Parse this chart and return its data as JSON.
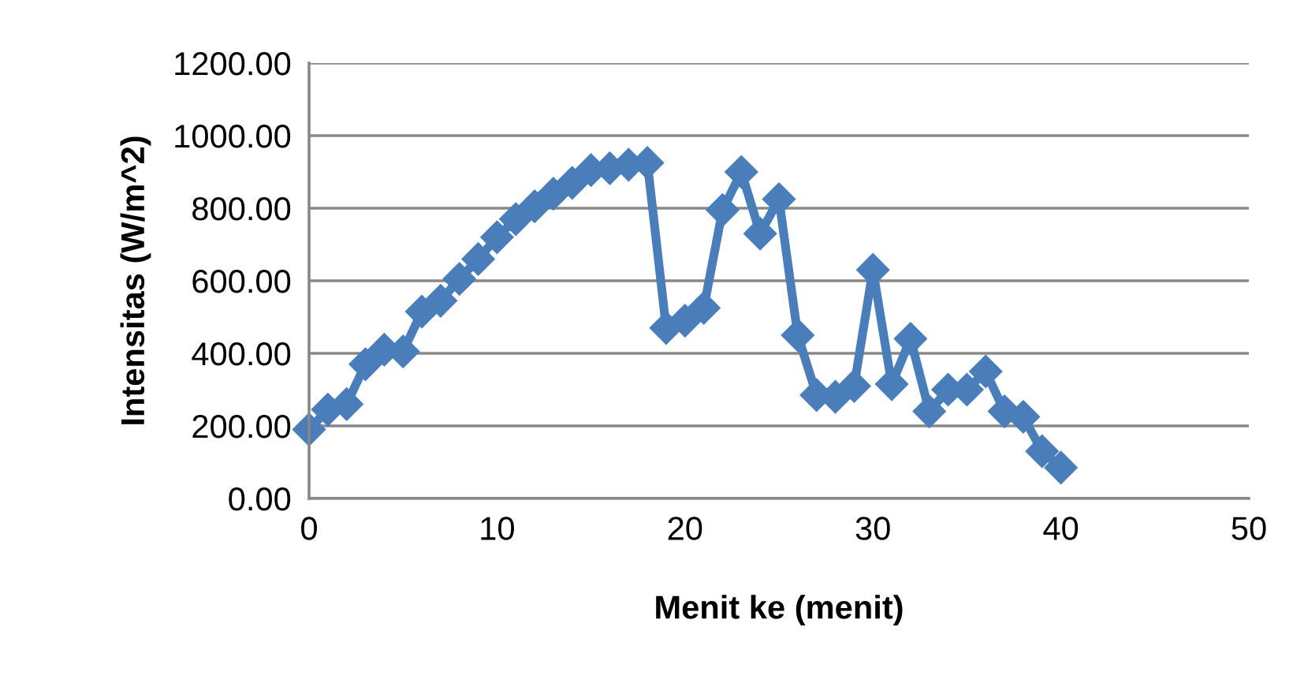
{
  "chart_data": {
    "type": "line",
    "xlabel": "Menit ke (menit)",
    "ylabel": "Intensitas (W/m^2)",
    "x": [
      0,
      1,
      2,
      3,
      4,
      5,
      6,
      7,
      8,
      9,
      10,
      11,
      12,
      13,
      14,
      15,
      16,
      17,
      18,
      19,
      20,
      21,
      22,
      23,
      24,
      25,
      26,
      27,
      28,
      29,
      30,
      31,
      32,
      33,
      34,
      35,
      36,
      37,
      38,
      39,
      40
    ],
    "series": [
      {
        "color": "#4a7ebb",
        "values": [
          190,
          245,
          260,
          370,
          410,
          405,
          515,
          545,
          605,
          660,
          720,
          770,
          805,
          840,
          870,
          905,
          910,
          920,
          925,
          470,
          490,
          525,
          795,
          900,
          730,
          825,
          450,
          285,
          280,
          310,
          630,
          315,
          440,
          240,
          300,
          300,
          350,
          240,
          225,
          130,
          85
        ]
      }
    ],
    "xlim": [
      0,
      50
    ],
    "xticks": [
      0,
      10,
      20,
      30,
      40,
      50
    ],
    "ylim": [
      0,
      1200
    ],
    "yticks": [
      {
        "value": 0,
        "label": "0.00"
      },
      {
        "value": 200,
        "label": "200.00"
      },
      {
        "value": 400,
        "label": "400.00"
      },
      {
        "value": 600,
        "label": "600.00"
      },
      {
        "value": 800,
        "label": "800.00"
      },
      {
        "value": 1000,
        "label": "1000.00"
      },
      {
        "value": 1200,
        "label": "1200.00"
      }
    ],
    "grid": "y",
    "marker": "diamond",
    "line_style": "solid",
    "legend": false
  }
}
